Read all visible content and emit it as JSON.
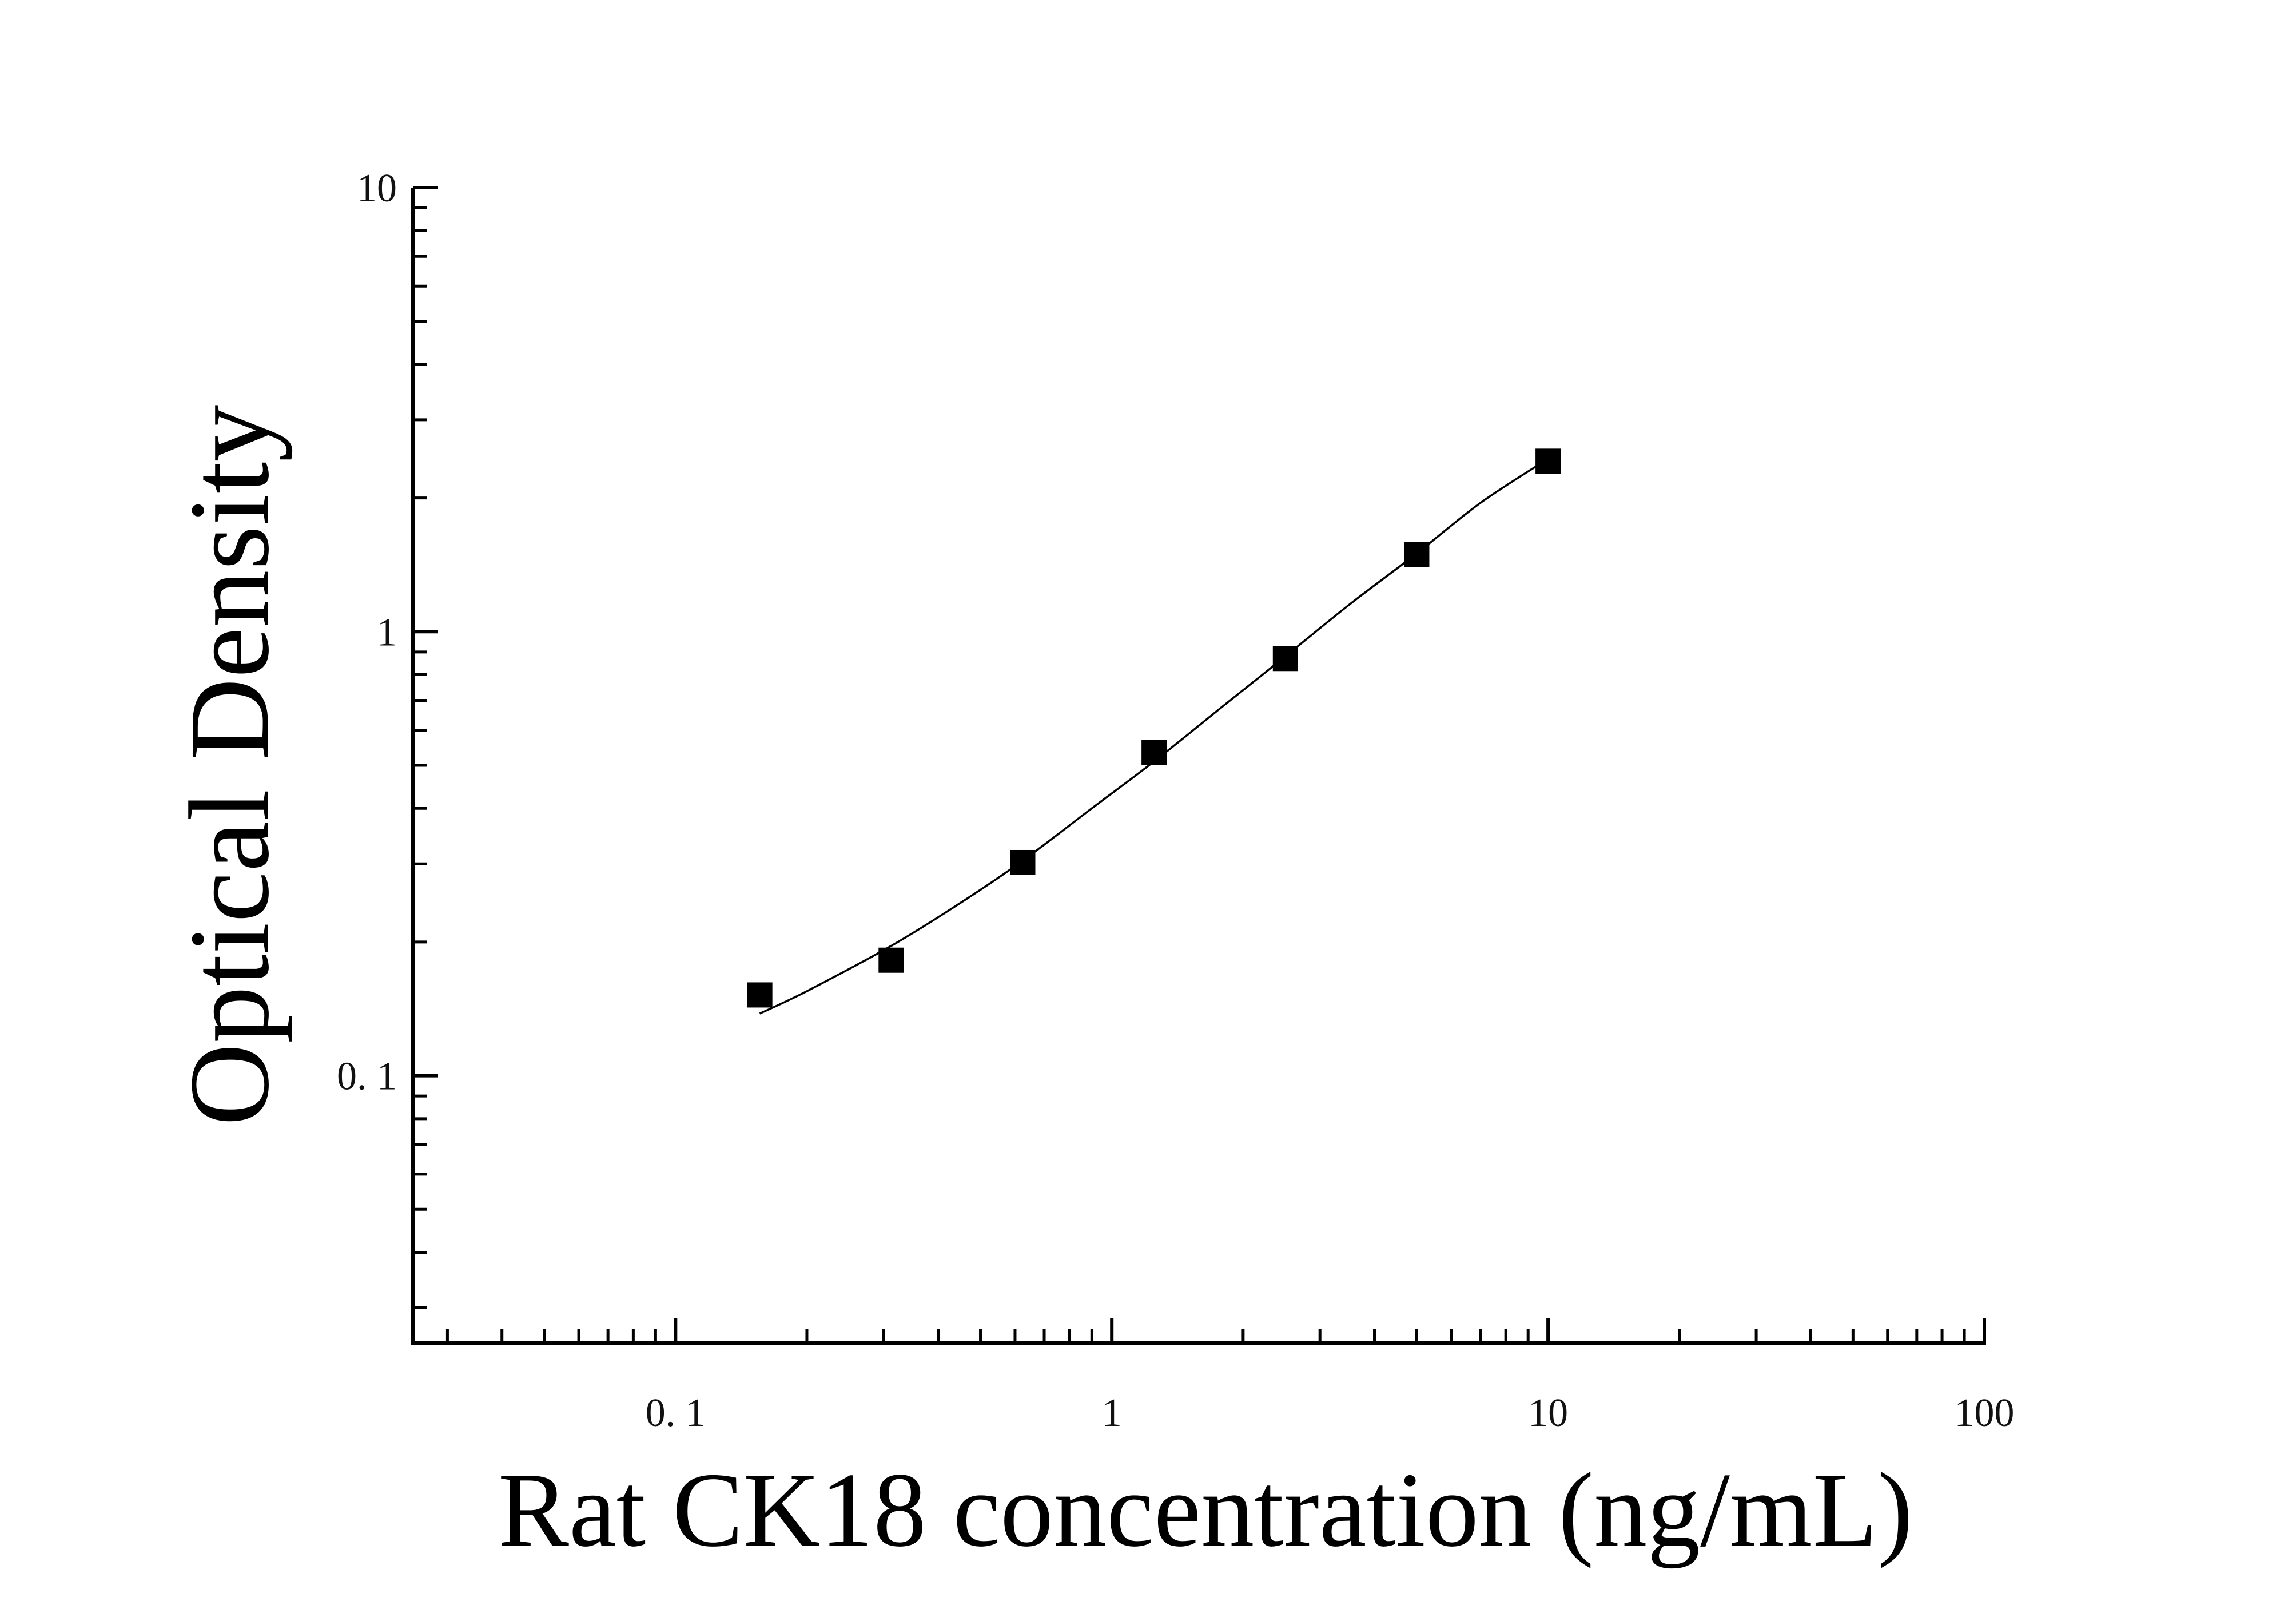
{
  "chart_data": {
    "type": "scatter",
    "xlabel": "Rat CK18 concentration (ng/mL)",
    "ylabel": "Optical Density",
    "x_scale": "log",
    "y_scale": "log",
    "xlim": [
      0.025,
      100
    ],
    "ylim": [
      0.025,
      10
    ],
    "x_ticks": [
      {
        "value": 0.1,
        "label": "0. 1"
      },
      {
        "value": 1,
        "label": "1"
      },
      {
        "value": 10,
        "label": "10"
      },
      {
        "value": 100,
        "label": "100"
      }
    ],
    "y_ticks": [
      {
        "value": 0.1,
        "label": "0. 1"
      },
      {
        "value": 1,
        "label": "1"
      },
      {
        "value": 10,
        "label": "10"
      }
    ],
    "grid": false,
    "legend": "none",
    "series": [
      {
        "marker": "square",
        "color": "#000000",
        "points": [
          {
            "x": 0.156,
            "y": 0.152
          },
          {
            "x": 0.312,
            "y": 0.182
          },
          {
            "x": 0.625,
            "y": 0.302
          },
          {
            "x": 1.25,
            "y": 0.535
          },
          {
            "x": 2.5,
            "y": 0.87
          },
          {
            "x": 5,
            "y": 1.49
          },
          {
            "x": 10,
            "y": 2.42
          }
        ]
      }
    ],
    "fit_curve": {
      "color": "#000000",
      "points": [
        {
          "x": 0.156,
          "y": 0.138
        },
        {
          "x": 0.2,
          "y": 0.155
        },
        {
          "x": 0.312,
          "y": 0.196
        },
        {
          "x": 0.45,
          "y": 0.245
        },
        {
          "x": 0.625,
          "y": 0.305
        },
        {
          "x": 0.9,
          "y": 0.4
        },
        {
          "x": 1.25,
          "y": 0.51
        },
        {
          "x": 1.8,
          "y": 0.68
        },
        {
          "x": 2.5,
          "y": 0.88
        },
        {
          "x": 3.5,
          "y": 1.15
        },
        {
          "x": 5,
          "y": 1.5
        },
        {
          "x": 7,
          "y": 1.95
        },
        {
          "x": 10,
          "y": 2.45
        }
      ]
    }
  }
}
